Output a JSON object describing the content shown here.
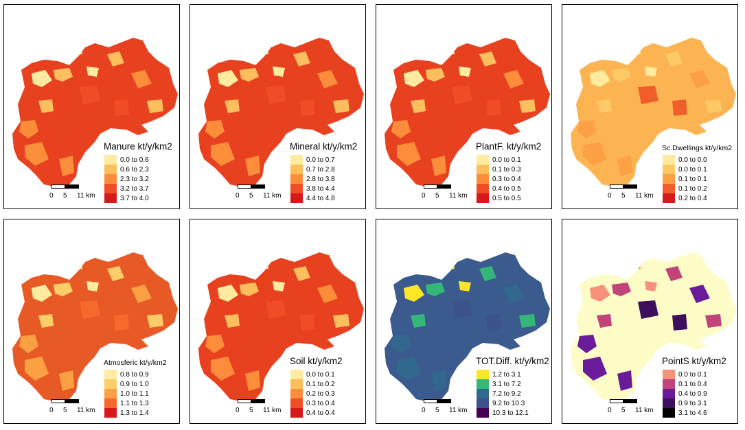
{
  "scale_bar": {
    "l0": "0",
    "l1": "5",
    "l2": "11 km"
  },
  "panels": [
    {
      "title": "Manure kt/y/km2",
      "title_size": "normal",
      "colors": [
        "#ffeba0",
        "#fdbf5e",
        "#fc8d3b",
        "#f04d26",
        "#d7191c"
      ],
      "base": "#e8411f",
      "legend": [
        "0.0 to 0.6",
        "0.6 to 2.3",
        "2.3 to 3.2",
        "3.2 to 3.7",
        "3.7 to 4.0"
      ]
    },
    {
      "title": "Mineral kt/y/km2",
      "title_size": "normal",
      "colors": [
        "#ffeba0",
        "#fdbf5e",
        "#fc8d3b",
        "#f04d26",
        "#d7191c"
      ],
      "base": "#e8411f",
      "legend": [
        "0.0 to 0.7",
        "0.7 to 2.8",
        "2.8 to 3.8",
        "3.8 to 4.4",
        "4.4 to 4.8"
      ]
    },
    {
      "title": "PlantF. kt/y/km2",
      "title_size": "normal",
      "colors": [
        "#ffeba0",
        "#fdbf5e",
        "#fc8d3b",
        "#f04d26",
        "#d7191c"
      ],
      "base": "#e8411f",
      "legend": [
        "0.0 to 0.1",
        "0.1 to 0.3",
        "0.3 to 0.4",
        "0.4 to 0.5",
        "0.5 to 0.5"
      ]
    },
    {
      "title": "Sc.Dwellings kt/y/km2",
      "title_size": "small",
      "colors": [
        "#ffeba0",
        "#fdc866",
        "#fca044",
        "#f05f2a",
        "#d7191c"
      ],
      "base": "#fcb453",
      "legend": [
        "0.0 to 0.0",
        "0.0 to 0.1",
        "0.1 to 0.1",
        "0.1 to 0.2",
        "0.2 to 0.4"
      ]
    },
    {
      "title": "Atmosferic kt/y/km2",
      "title_size": "small",
      "colors": [
        "#ffeba0",
        "#fdcd6a",
        "#fca044",
        "#f56a2c",
        "#d7191c"
      ],
      "base": "#e85a25",
      "legend": [
        "0.8 to 0.9",
        "0.9 to 1.0",
        "1.0 to 1.1",
        "1.1 to 1.3",
        "1.3 to 1.4"
      ]
    },
    {
      "title": "Soil kt/y/km2",
      "title_size": "normal",
      "colors": [
        "#ffeba0",
        "#fdbf5e",
        "#fc8d3b",
        "#f04d26",
        "#d7191c"
      ],
      "base": "#e8411f",
      "legend": [
        "0.0 to 0.1",
        "0.1 to 0.2",
        "0.2 to 0.3",
        "0.3 to 0.4",
        "0.4 to 0.4"
      ]
    },
    {
      "title": "TOT.Diff. kt/y/km2",
      "title_size": "normal",
      "colors": [
        "#fde725",
        "#35b779",
        "#31688e",
        "#3b528b",
        "#440154"
      ],
      "base": "#3b5b8f",
      "legend": [
        "1.2 to 3.1",
        "3.1 to 7.2",
        "7.2 to 9.2",
        "9.2 to 10.3",
        "10.3 to 12.1"
      ]
    },
    {
      "title": "PointS kt/y/km2",
      "title_size": "normal",
      "colors": [
        "#f8917a",
        "#c0437a",
        "#6a1b9a",
        "#3d0f5c",
        "#000000"
      ],
      "base": "#fefcc6",
      "legend": [
        "0.0 to 0.1",
        "0.1 to 0.4",
        "0.4 to 0.9",
        "0.9 to 3.1",
        "3.1 to 4.6"
      ]
    }
  ]
}
